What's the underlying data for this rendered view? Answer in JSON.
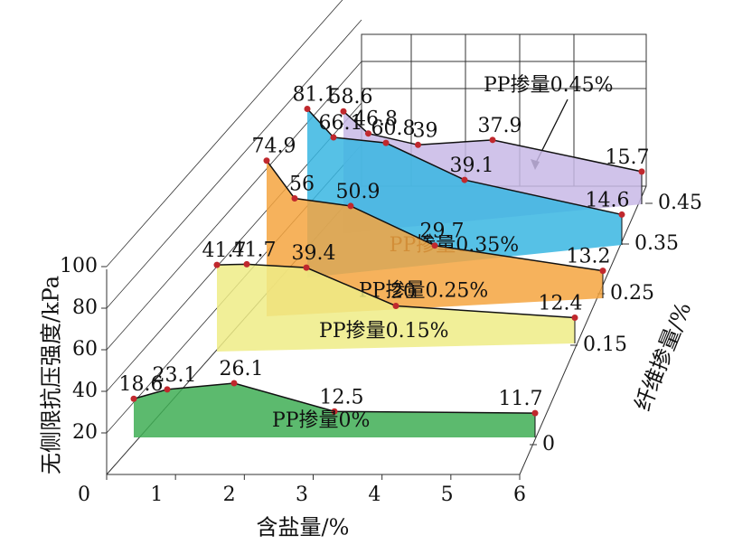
{
  "chart_data": {
    "type": "waterfall3d",
    "x_label": "含盐量/%",
    "y_label": "无侧限抗压强度/kPa",
    "z_label": "纤维掺量/%",
    "x": [
      0,
      0.5,
      1.5,
      3,
      6
    ],
    "xlim": [
      0,
      6
    ],
    "xticks": [
      0,
      1,
      2,
      3,
      4,
      5,
      6
    ],
    "ylim": [
      0,
      100
    ],
    "yticks": [
      20,
      40,
      60,
      80,
      100
    ],
    "zticks": [
      0,
      0.15,
      0.25,
      0.35,
      0.45
    ],
    "annotation": "PP掺量0.45%",
    "series": [
      {
        "name": "PP掺量0%",
        "color": "#3fae55",
        "values": [
          18.6,
          23.1,
          26.1,
          12.5,
          11.7
        ]
      },
      {
        "name": "PP掺量0.15%",
        "color": "#eeec86",
        "values": [
          41.7,
          41.7,
          39.4,
          20,
          12.4
        ]
      },
      {
        "name": "PP掺量0.25%",
        "color": "#f4a540",
        "values": [
          74.9,
          56,
          50.9,
          29.7,
          13.2
        ]
      },
      {
        "name": "PP掺量0.35%",
        "color": "#38b6e2",
        "values": [
          81.1,
          66.1,
          60.8,
          39.1,
          14.6
        ]
      },
      {
        "name": "PP掺量0.45%",
        "color": "#c8b9e6",
        "values": [
          58.6,
          46.8,
          39,
          37.9,
          15.7
        ]
      }
    ]
  }
}
